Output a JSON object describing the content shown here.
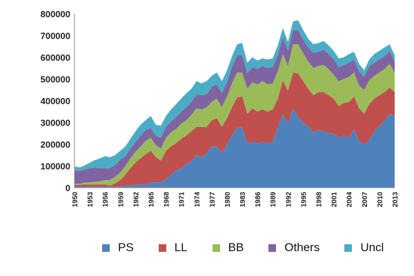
{
  "chart_data": {
    "type": "area",
    "stacked": true,
    "title": "",
    "xlabel": "",
    "ylabel": "",
    "ylim": [
      0,
      800000
    ],
    "yticks": [
      "0",
      "100000",
      "200000",
      "300000",
      "400000",
      "500000",
      "600000",
      "700000",
      "800000"
    ],
    "xtick_labels": [
      "1950",
      "1953",
      "1956",
      "1959",
      "1962",
      "1965",
      "1968",
      "1971",
      "1974",
      "1977",
      "1980",
      "1983",
      "1986",
      "1989",
      "1992",
      "1995",
      "1998",
      "2001",
      "2004",
      "2007",
      "2010",
      "2013"
    ],
    "grid": false,
    "legend_position": "bottom",
    "x": [
      1950,
      1951,
      1952,
      1953,
      1954,
      1955,
      1956,
      1957,
      1958,
      1959,
      1960,
      1961,
      1962,
      1963,
      1964,
      1965,
      1966,
      1967,
      1968,
      1969,
      1970,
      1971,
      1972,
      1973,
      1974,
      1975,
      1976,
      1977,
      1978,
      1979,
      1980,
      1981,
      1982,
      1983,
      1984,
      1985,
      1986,
      1987,
      1988,
      1989,
      1990,
      1991,
      1992,
      1993,
      1994,
      1995,
      1996,
      1997,
      1998,
      1999,
      2000,
      2001,
      2002,
      2003,
      2004,
      2005,
      2006,
      2007,
      2008,
      2009,
      2010,
      2011,
      2012,
      2013
    ],
    "series": [
      {
        "name": "PS",
        "color": "#4f81bd",
        "values": [
          5000,
          5000,
          5000,
          5000,
          5000,
          5000,
          5000,
          5000,
          5000,
          5000,
          10000,
          10000,
          15000,
          15000,
          15000,
          25000,
          25000,
          25000,
          40000,
          60000,
          80000,
          90000,
          110000,
          120000,
          150000,
          140000,
          160000,
          190000,
          190000,
          160000,
          200000,
          240000,
          275000,
          280000,
          205000,
          210000,
          205000,
          210000,
          205000,
          210000,
          280000,
          340000,
          295000,
          365000,
          330000,
          300000,
          280000,
          255000,
          265000,
          260000,
          250000,
          250000,
          230000,
          240000,
          230000,
          270000,
          215000,
          200000,
          220000,
          260000,
          285000,
          310000,
          340000,
          330000
        ]
      },
      {
        "name": "LL",
        "color": "#c0504d",
        "values": [
          8000,
          8000,
          10000,
          10000,
          10000,
          10000,
          10000,
          5000,
          15000,
          30000,
          50000,
          80000,
          100000,
          120000,
          140000,
          145000,
          115000,
          100000,
          130000,
          130000,
          125000,
          135000,
          130000,
          140000,
          130000,
          140000,
          120000,
          120000,
          130000,
          120000,
          120000,
          130000,
          140000,
          140000,
          135000,
          155000,
          145000,
          150000,
          145000,
          150000,
          130000,
          155000,
          150000,
          165000,
          195000,
          190000,
          175000,
          170000,
          175000,
          180000,
          175000,
          160000,
          145000,
          150000,
          165000,
          150000,
          150000,
          140000,
          165000,
          150000,
          140000,
          130000,
          120000,
          110000
        ]
      },
      {
        "name": "BB",
        "color": "#9bbb59",
        "values": [
          5000,
          5000,
          8000,
          10000,
          12000,
          15000,
          20000,
          25000,
          30000,
          35000,
          40000,
          45000,
          50000,
          55000,
          60000,
          60000,
          55000,
          55000,
          60000,
          65000,
          65000,
          70000,
          70000,
          75000,
          85000,
          80000,
          90000,
          85000,
          90000,
          90000,
          100000,
          110000,
          115000,
          110000,
          115000,
          120000,
          125000,
          130000,
          125000,
          120000,
          125000,
          120000,
          115000,
          130000,
          135000,
          130000,
          125000,
          125000,
          120000,
          125000,
          120000,
          110000,
          115000,
          110000,
          115000,
          110000,
          105000,
          110000,
          110000,
          105000,
          105000,
          105000,
          110000,
          90000
        ]
      },
      {
        "name": "Others",
        "color": "#8064a2",
        "values": [
          60000,
          60000,
          60000,
          65000,
          65000,
          60000,
          55000,
          55000,
          55000,
          60000,
          45000,
          45000,
          45000,
          50000,
          50000,
          45000,
          45000,
          50000,
          50000,
          50000,
          55000,
          55000,
          60000,
          60000,
          65000,
          65000,
          60000,
          70000,
          65000,
          65000,
          65000,
          75000,
          80000,
          80000,
          70000,
          70000,
          70000,
          70000,
          75000,
          75000,
          75000,
          80000,
          70000,
          65000,
          65000,
          60000,
          65000,
          70000,
          65000,
          70000,
          70000,
          70000,
          65000,
          65000,
          65000,
          60000,
          65000,
          60000,
          65000,
          60000,
          60000,
          60000,
          60000,
          50000
        ]
      },
      {
        "name": "Uncl",
        "color": "#4bacc6",
        "values": [
          20000,
          15000,
          20000,
          25000,
          35000,
          45000,
          55000,
          50000,
          45000,
          40000,
          45000,
          45000,
          50000,
          50000,
          45000,
          55000,
          50000,
          55000,
          50000,
          55000,
          60000,
          60000,
          65000,
          60000,
          60000,
          55000,
          60000,
          50000,
          55000,
          55000,
          55000,
          50000,
          50000,
          55000,
          50000,
          45000,
          40000,
          35000,
          40000,
          40000,
          45000,
          40000,
          40000,
          40000,
          45000,
          45000,
          40000,
          40000,
          40000,
          40000,
          40000,
          40000,
          40000,
          35000,
          40000,
          35000,
          35000,
          30000,
          30000,
          40000,
          40000,
          40000,
          30000,
          30000
        ]
      }
    ]
  }
}
